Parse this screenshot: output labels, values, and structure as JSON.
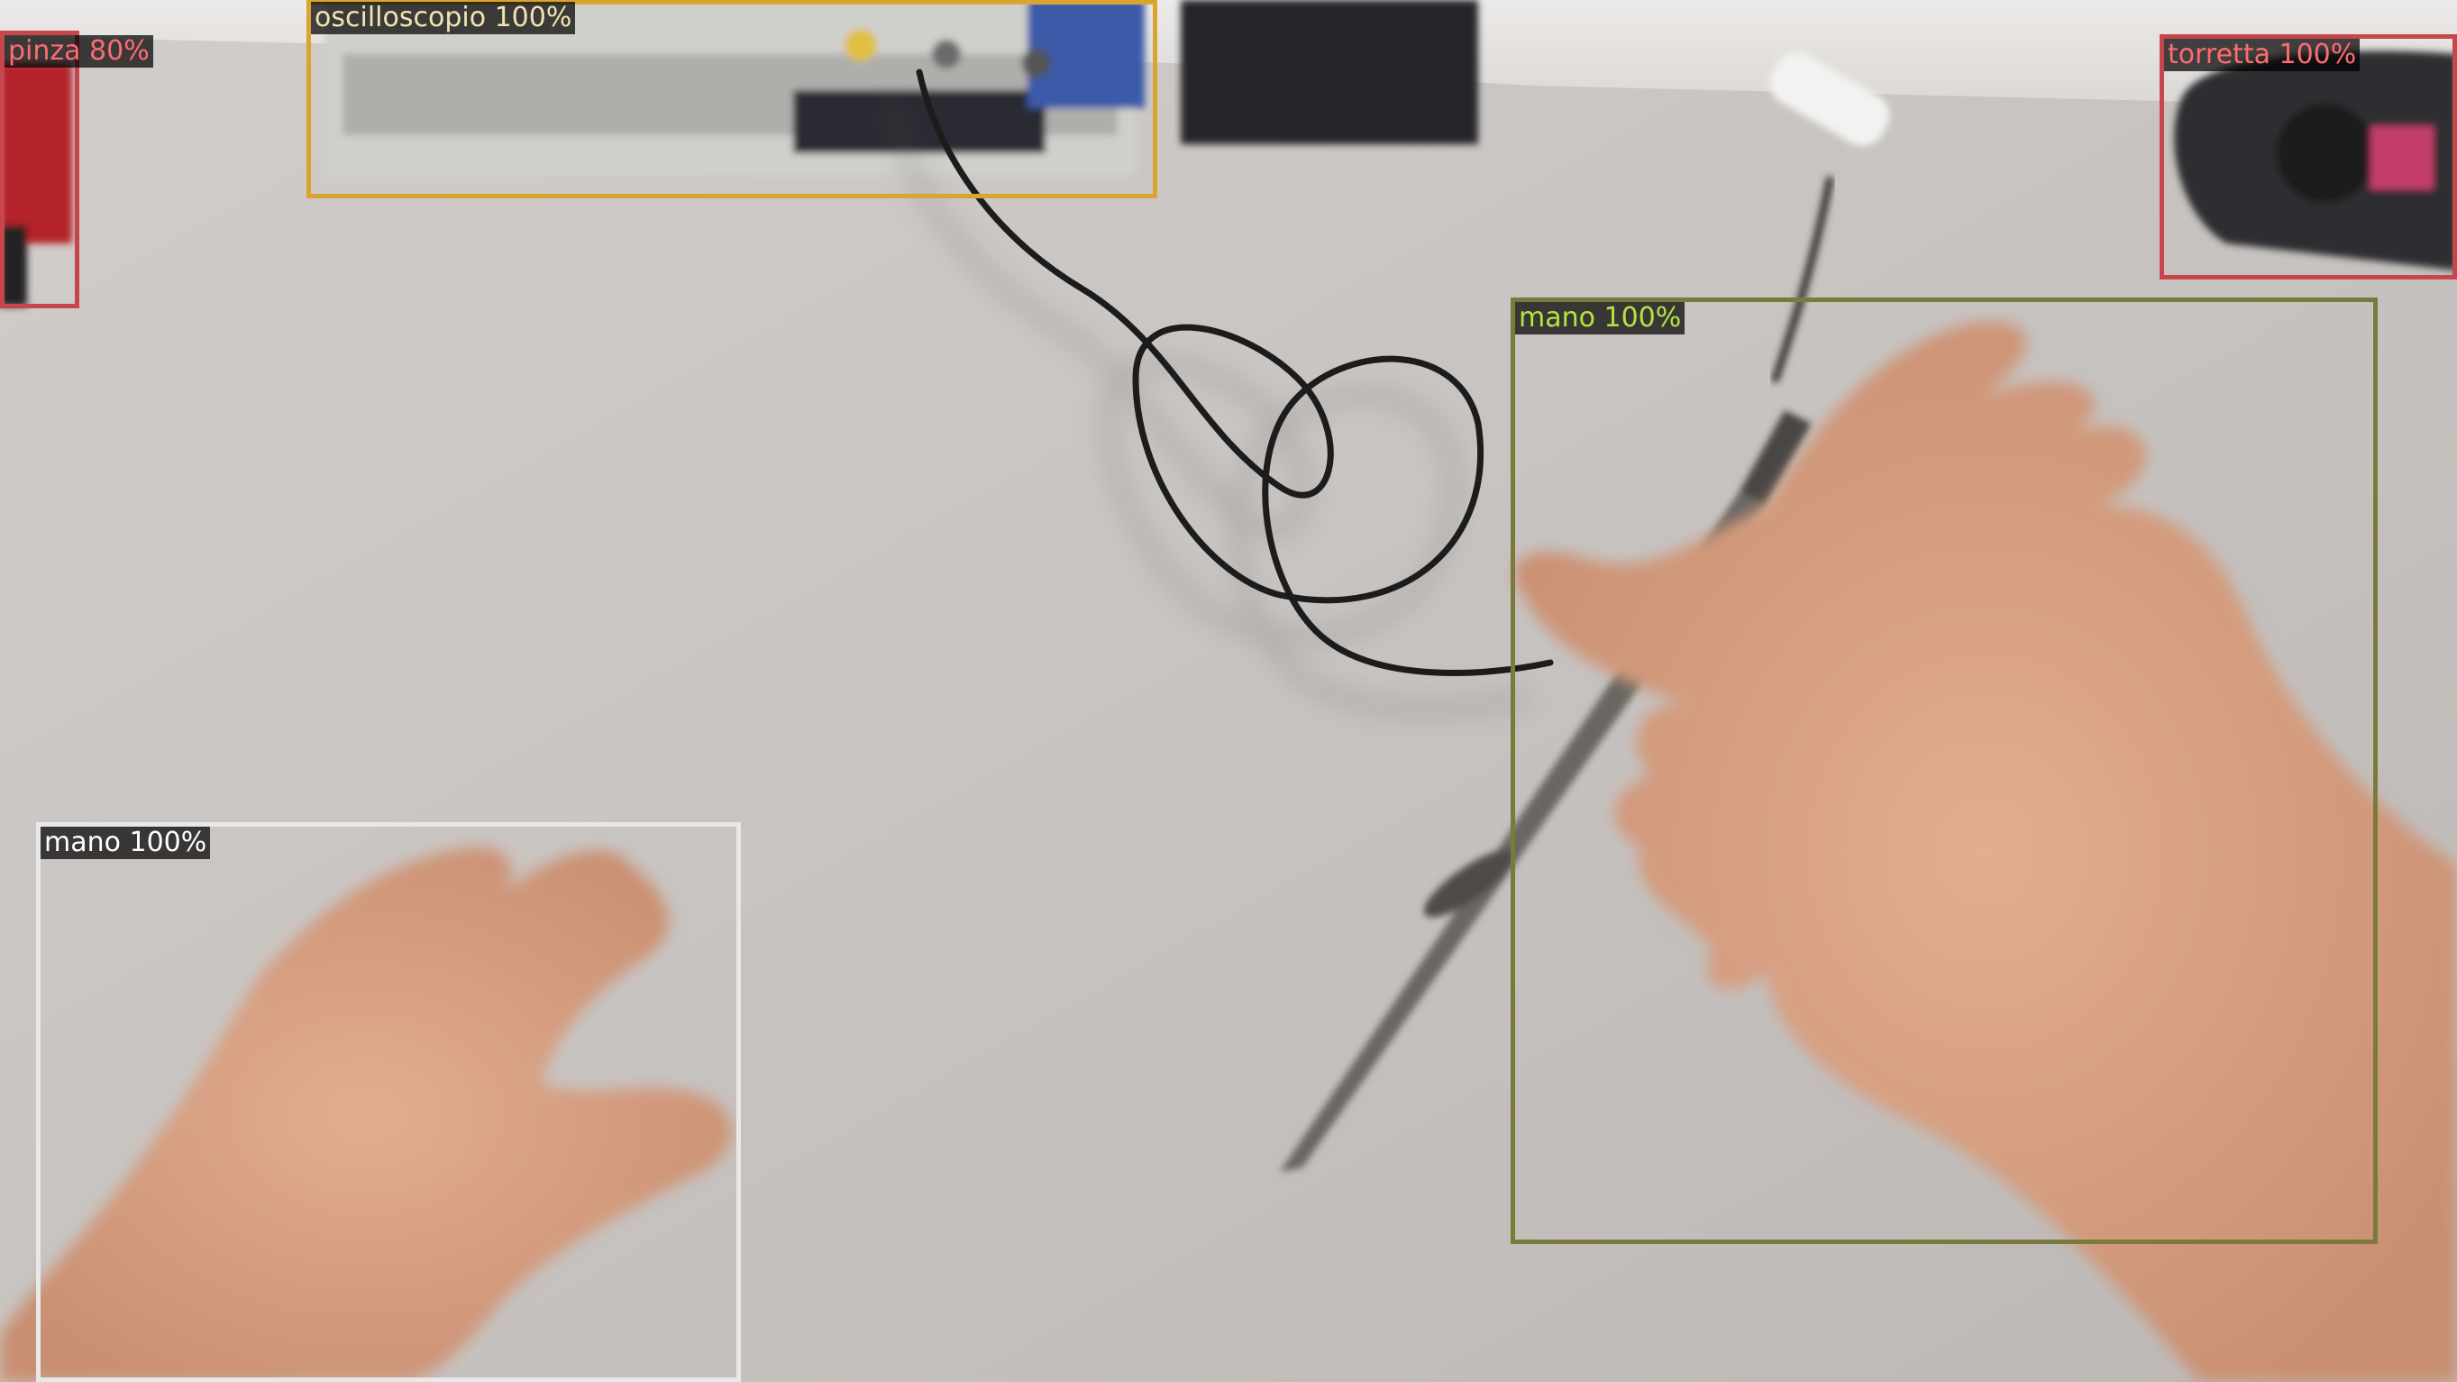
{
  "image": {
    "description": "Egocentric view of a desk with an oscilloscope probe held by a hand, with object detection overlays",
    "colors": {
      "desk": "#c9c5c2",
      "skin": "#d9a385",
      "cable": "#1c1c1c",
      "probe": "#5c5955"
    }
  },
  "detections": [
    {
      "label": "oscilloscopio 100%",
      "class": "oscilloscopio",
      "score": 100,
      "color": "#d8a531",
      "text_color": "#f3e3b0"
    },
    {
      "label": "pinza 80%",
      "class": "pinza",
      "score": 80,
      "color": "#c8454b",
      "text_color": "#ff6b72"
    },
    {
      "label": "torretta 100%",
      "class": "torretta",
      "score": 100,
      "color": "#c8454b",
      "text_color": "#ff6b72"
    },
    {
      "label": "mano 100%",
      "class": "mano",
      "score": 100,
      "color": "#7a7a3a",
      "text_color": "#b5e340"
    },
    {
      "label": "mano 100%",
      "class": "mano",
      "score": 100,
      "color": "#e8e8e8",
      "text_color": "#ffffff"
    }
  ]
}
